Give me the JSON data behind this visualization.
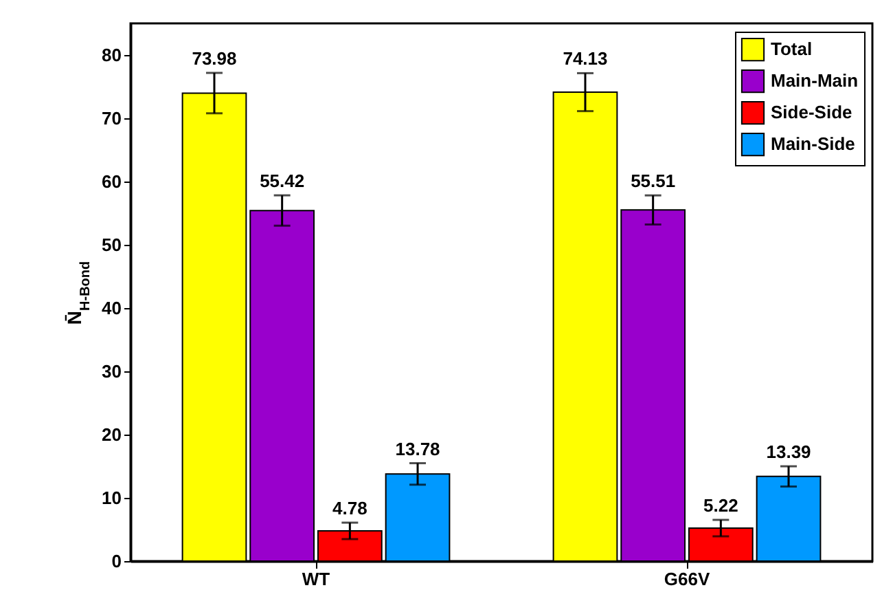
{
  "chart_data": {
    "type": "bar",
    "categories": [
      "WT",
      "G66V"
    ],
    "series": [
      {
        "name": "Total",
        "color": "#ffff00",
        "values": [
          73.98,
          74.13
        ],
        "errors": [
          3.2,
          3.0
        ]
      },
      {
        "name": "Main-Main",
        "color": "#9900cc",
        "values": [
          55.42,
          55.51
        ],
        "errors": [
          2.4,
          2.3
        ]
      },
      {
        "name": "Side-Side",
        "color": "#ff0000",
        "values": [
          4.78,
          5.22
        ],
        "errors": [
          1.3,
          1.3
        ]
      },
      {
        "name": "Main-Side",
        "color": "#0099ff",
        "values": [
          13.78,
          13.39
        ],
        "errors": [
          1.7,
          1.6
        ]
      }
    ],
    "ylabel": "N̄$_{H-Bond}$",
    "ylim": [
      0,
      85
    ],
    "yticks": [
      0,
      10,
      20,
      30,
      40,
      50,
      60,
      70,
      80
    ],
    "data_labels": true,
    "legend": "top right",
    "grid": false
  }
}
